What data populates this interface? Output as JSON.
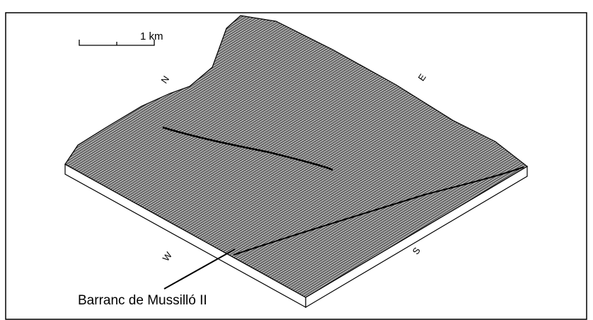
{
  "scale_bar": {
    "label": "1 km"
  },
  "compass": {
    "north": "N",
    "east": "E",
    "south": "S",
    "west": "W"
  },
  "annotation": {
    "label": "Barranc de Mussilló II"
  }
}
